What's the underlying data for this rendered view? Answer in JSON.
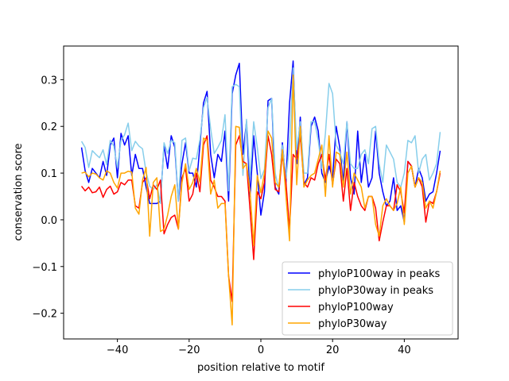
{
  "chart_data": {
    "type": "line",
    "title": "",
    "xlabel": "position relative to motif",
    "ylabel": "conservation score",
    "xlim": [
      -55,
      55
    ],
    "ylim": [
      -0.255,
      0.372
    ],
    "xticks": [
      -40,
      -20,
      0,
      20,
      40
    ],
    "yticks": [
      -0.2,
      -0.1,
      0.0,
      0.1,
      0.2,
      0.3
    ],
    "ytick_labels": [
      "−0.2",
      "−0.1",
      "0.0",
      "0.1",
      "0.2",
      "0.3"
    ],
    "xtick_labels": [
      "−40",
      "−20",
      "0",
      "20",
      "40"
    ],
    "legend_position": "lower-right",
    "x": [
      -50,
      -49,
      -48,
      -47,
      -46,
      -45,
      -44,
      -43,
      -42,
      -41,
      -40,
      -39,
      -38,
      -37,
      -36,
      -35,
      -34,
      -33,
      -32,
      -31,
      -30,
      -29,
      -28,
      -27,
      -26,
      -25,
      -24,
      -23,
      -22,
      -21,
      -20,
      -19,
      -18,
      -17,
      -16,
      -15,
      -14,
      -13,
      -12,
      -11,
      -10,
      -9,
      -8,
      -7,
      -6,
      -5,
      -4,
      -3,
      -2,
      -1,
      0,
      1,
      2,
      3,
      4,
      5,
      6,
      7,
      8,
      9,
      10,
      11,
      12,
      13,
      14,
      15,
      16,
      17,
      18,
      19,
      20,
      21,
      22,
      23,
      24,
      25,
      26,
      27,
      28,
      29,
      30,
      31,
      32,
      33,
      34,
      35,
      36,
      37,
      38,
      39,
      40,
      41,
      42,
      43,
      44,
      45,
      46,
      47,
      48,
      49,
      50
    ],
    "series": [
      {
        "name": "phyloP100way in peaks",
        "color": "#0000ff",
        "values": [
          0.155,
          0.105,
          0.08,
          0.11,
          0.1,
          0.09,
          0.125,
          0.095,
          0.16,
          0.175,
          0.09,
          0.185,
          0.16,
          0.18,
          0.095,
          0.14,
          0.11,
          0.11,
          0.07,
          0.035,
          0.035,
          0.035,
          0.04,
          0.16,
          0.11,
          0.18,
          0.155,
          0.04,
          0.12,
          0.165,
          0.1,
          0.1,
          0.07,
          0.16,
          0.25,
          0.275,
          0.14,
          0.09,
          0.14,
          0.125,
          0.19,
          0.04,
          0.27,
          0.31,
          0.335,
          0.14,
          0.21,
          0.05,
          0.18,
          0.1,
          0.01,
          0.06,
          0.255,
          0.26,
          0.07,
          0.055,
          0.165,
          0.08,
          0.25,
          0.34,
          0.12,
          0.22,
          0.075,
          0.09,
          0.2,
          0.22,
          0.19,
          0.1,
          0.08,
          0.115,
          0.09,
          0.2,
          0.155,
          0.08,
          0.21,
          0.09,
          0.055,
          0.19,
          0.08,
          0.14,
          0.07,
          0.09,
          0.19,
          0.1,
          0.06,
          0.03,
          0.04,
          0.09,
          0.02,
          0.03,
          -0.005,
          0.125,
          0.115,
          0.07,
          0.11,
          0.09,
          0.04,
          0.055,
          0.06,
          0.1,
          0.148
        ]
      },
      {
        "name": "phyloP30way in peaks",
        "color": "#87ceeb",
        "values": [
          0.168,
          0.155,
          0.112,
          0.148,
          0.14,
          0.133,
          0.15,
          0.118,
          0.17,
          0.158,
          0.112,
          0.17,
          0.182,
          0.207,
          0.148,
          0.168,
          0.158,
          0.152,
          0.102,
          0.072,
          0.065,
          0.075,
          0.035,
          0.165,
          0.142,
          0.17,
          0.165,
          0.04,
          0.17,
          0.175,
          0.105,
          0.132,
          0.13,
          0.172,
          0.24,
          0.262,
          0.195,
          0.142,
          0.155,
          0.17,
          0.225,
          0.062,
          0.285,
          0.29,
          0.285,
          0.095,
          0.215,
          0.09,
          0.21,
          0.155,
          0.088,
          0.108,
          0.24,
          0.26,
          0.1,
          0.065,
          0.16,
          0.088,
          0.16,
          0.325,
          0.15,
          0.21,
          0.1,
          0.1,
          0.21,
          0.21,
          0.17,
          0.11,
          0.185,
          0.292,
          0.27,
          0.16,
          0.145,
          0.12,
          0.21,
          0.12,
          0.11,
          0.11,
          0.14,
          0.15,
          0.12,
          0.195,
          0.2,
          0.12,
          0.08,
          0.16,
          0.145,
          0.13,
          0.08,
          0.07,
          0.1,
          0.17,
          0.165,
          0.18,
          0.1,
          0.13,
          0.14,
          0.085,
          0.1,
          0.12,
          0.188
        ]
      },
      {
        "name": "phyloP100way",
        "color": "#ff0000",
        "values": [
          0.072,
          0.062,
          0.07,
          0.058,
          0.06,
          0.07,
          0.048,
          0.065,
          0.072,
          0.055,
          0.06,
          0.08,
          0.075,
          0.085,
          0.085,
          0.03,
          0.025,
          0.08,
          0.09,
          0.045,
          0.075,
          0.065,
          0.085,
          -0.03,
          -0.01,
          0.005,
          0.01,
          -0.02,
          0.09,
          0.11,
          0.04,
          0.055,
          0.1,
          0.06,
          0.16,
          0.18,
          0.085,
          0.07,
          0.05,
          0.05,
          0.04,
          -0.12,
          -0.175,
          0.16,
          0.18,
          0.125,
          0.12,
          0.02,
          -0.085,
          0.06,
          0.045,
          0.08,
          0.18,
          0.14,
          0.065,
          0.06,
          0.14,
          0.08,
          -0.02,
          0.14,
          0.13,
          0.18,
          0.08,
          0.07,
          0.09,
          0.085,
          0.12,
          0.14,
          0.085,
          0.14,
          0.075,
          0.13,
          0.12,
          0.04,
          0.11,
          0.02,
          0.08,
          0.05,
          0.03,
          0.02,
          0.05,
          0.05,
          0.025,
          -0.045,
          -0.005,
          0.03,
          0.03,
          0.02,
          0.075,
          0.06,
          0.015,
          0.125,
          0.115,
          0.07,
          0.09,
          0.07,
          -0.005,
          0.04,
          0.035,
          0.06,
          0.1
        ]
      },
      {
        "name": "phyloP30way",
        "color": "#ffa500",
        "values": [
          0.1,
          0.102,
          0.092,
          0.1,
          0.098,
          0.09,
          0.085,
          0.105,
          0.1,
          0.08,
          0.068,
          0.1,
          0.1,
          0.104,
          0.102,
          0.025,
          0.012,
          0.085,
          0.112,
          -0.035,
          0.08,
          0.09,
          -0.025,
          -0.02,
          0.01,
          0.05,
          0.075,
          -0.02,
          0.08,
          0.12,
          0.065,
          0.08,
          0.11,
          0.08,
          0.175,
          0.17,
          0.055,
          0.085,
          0.025,
          0.035,
          0.035,
          -0.12,
          -0.225,
          0.2,
          0.198,
          0.11,
          0.12,
          0.06,
          -0.055,
          0.095,
          0.058,
          0.1,
          0.19,
          0.175,
          0.08,
          0.07,
          0.15,
          0.05,
          -0.045,
          0.31,
          0.075,
          0.2,
          0.07,
          0.085,
          0.095,
          0.1,
          0.13,
          0.16,
          0.05,
          0.18,
          0.07,
          0.145,
          0.14,
          0.07,
          0.145,
          0.055,
          0.1,
          0.085,
          0.07,
          0.025,
          0.05,
          0.05,
          -0.01,
          -0.035,
          0.03,
          0.045,
          0.03,
          0.02,
          0.035,
          0.07,
          -0.01,
          0.1,
          0.115,
          0.07,
          0.09,
          0.08,
          0.025,
          0.04,
          0.025,
          0.06,
          0.105
        ]
      }
    ]
  }
}
